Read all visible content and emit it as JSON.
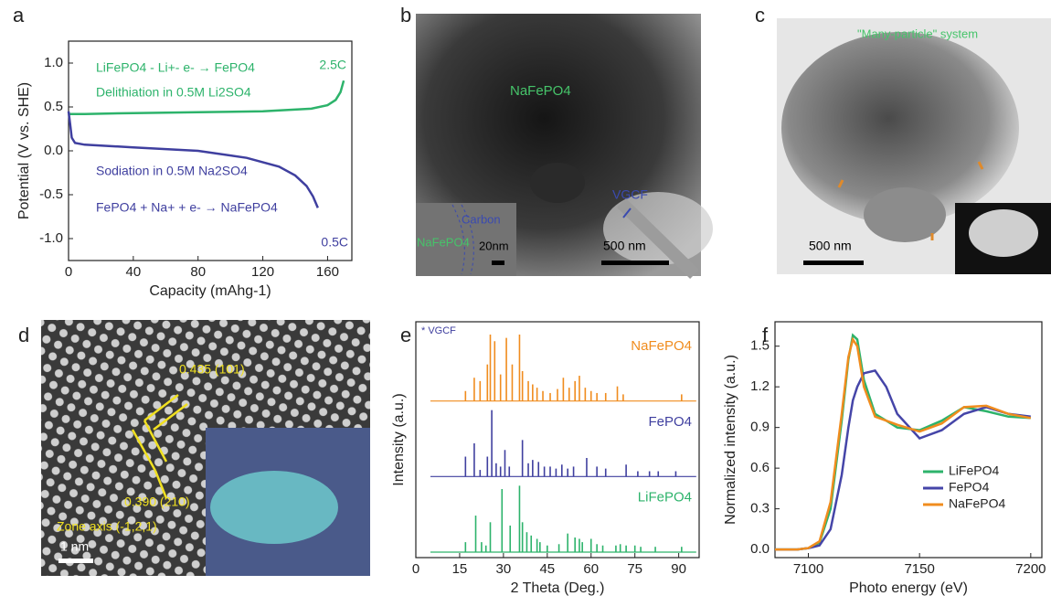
{
  "chart_data": [
    {
      "type": "line",
      "label": "a",
      "xlabel": "Capacity (mAhg-1)",
      "ylabel": "Potential (V vs. SHE)",
      "xlim": [
        0,
        175
      ],
      "xticks": [
        0,
        40,
        80,
        120,
        160
      ],
      "ylim": [
        -1.25,
        1.25
      ],
      "yticks": [
        {
          "value": -1.0,
          "label": "-1.0"
        },
        {
          "value": -0.5,
          "label": "-0.5"
        },
        {
          "value": 0.0,
          "label": "0.0"
        },
        {
          "value": 0.5,
          "label": "0.5"
        },
        {
          "value": 1.0,
          "label": "1.0"
        }
      ],
      "series": [
        {
          "color": "#2db36b",
          "x": [
            0,
            10,
            40,
            80,
            120,
            150,
            160,
            165,
            168,
            170
          ],
          "values": [
            0.42,
            0.42,
            0.43,
            0.44,
            0.45,
            0.48,
            0.52,
            0.58,
            0.67,
            0.8
          ]
        },
        {
          "color": "#3f3f9f",
          "x": [
            0,
            1,
            2,
            4,
            10,
            40,
            80,
            110,
            130,
            140,
            147,
            151,
            154
          ],
          "values": [
            0.45,
            0.3,
            0.15,
            0.09,
            0.07,
            0.04,
            0.0,
            -0.08,
            -0.18,
            -0.28,
            -0.4,
            -0.52,
            -0.65
          ]
        }
      ],
      "annotations": [
        {
          "text": "LiFePO4 - Li+- e- → FePO4",
          "color": "#2db36b"
        },
        {
          "text": "Delithiation in 0.5M Li2SO4",
          "color": "#2db36b"
        },
        {
          "text": "2.5C",
          "color": "#2db36b"
        },
        {
          "text": "Sodiation in 0.5M Na2SO4",
          "color": "#3f3f9f"
        },
        {
          "text": "FePO4 + Na+ + e- → NaFePO4",
          "color": "#3f3f9f"
        },
        {
          "text": "0.5C",
          "color": "#3f3f9f"
        }
      ]
    },
    {
      "type": "spectrum",
      "label": "e",
      "xlabel": "2 Theta (Deg.)",
      "ylabel": "Intensity (a.u.)",
      "xlim": [
        0,
        97
      ],
      "xticks": [
        0,
        15,
        30,
        45,
        60,
        75,
        90
      ],
      "marker_note": "* VGCF",
      "series": [
        {
          "name": "NaFePO4",
          "color": "#f08c1e",
          "x": [
            17,
            20,
            22,
            24.5,
            25.5,
            27,
            29,
            31,
            33,
            35.5,
            36.5,
            38.5,
            40,
            41.5,
            43.5,
            46,
            48.5,
            50.5,
            52.5,
            54.5,
            56,
            58,
            60,
            62,
            65,
            69,
            71,
            91
          ],
          "values": [
            15,
            35,
            30,
            55,
            100,
            90,
            40,
            95,
            55,
            100,
            45,
            30,
            25,
            20,
            15,
            12,
            18,
            35,
            20,
            30,
            38,
            20,
            15,
            12,
            12,
            22,
            10,
            10
          ]
        },
        {
          "name": "FePO4",
          "color": "#3f3f9f",
          "x": [
            17,
            20,
            22,
            24.5,
            26,
            27.5,
            29,
            30.5,
            32,
            36.5,
            38.5,
            40,
            42,
            44,
            46,
            48,
            50,
            52,
            54,
            58.5,
            62,
            65,
            72,
            76,
            80,
            83,
            89
          ],
          "values": [
            30,
            50,
            10,
            30,
            100,
            20,
            15,
            40,
            15,
            55,
            20,
            25,
            22,
            15,
            15,
            12,
            18,
            12,
            15,
            28,
            15,
            12,
            18,
            8,
            8,
            8,
            8
          ]
        },
        {
          "name": "LiFePO4",
          "color": "#2db36b",
          "x": [
            17,
            20.5,
            22.5,
            24,
            25.5,
            29.5,
            32.3,
            35.5,
            36.5,
            38,
            39.5,
            41.5,
            42.5,
            45,
            49,
            52,
            54.5,
            56,
            57,
            60,
            62,
            64,
            68.5,
            70,
            72,
            75,
            77,
            82,
            91
          ],
          "values": [
            15,
            55,
            15,
            10,
            45,
            95,
            40,
            100,
            45,
            30,
            25,
            20,
            15,
            10,
            12,
            28,
            22,
            20,
            15,
            20,
            12,
            10,
            10,
            12,
            10,
            10,
            8,
            8,
            8
          ]
        }
      ]
    },
    {
      "type": "line",
      "label": "f",
      "xlabel": "Photo energy (eV)",
      "ylabel": "Normalized intensity (a.u.)",
      "xlim": [
        7085,
        7205
      ],
      "xticks": [
        7100,
        7150,
        7200
      ],
      "ylim": [
        -0.06,
        1.68
      ],
      "yticks": [
        {
          "value": 0.0,
          "label": "0.0"
        },
        {
          "value": 0.3,
          "label": "0.3"
        },
        {
          "value": 0.6,
          "label": "0.6"
        },
        {
          "value": 0.9,
          "label": "0.9"
        },
        {
          "value": 1.2,
          "label": "1.2"
        },
        {
          "value": 1.5,
          "label": "1.5"
        }
      ],
      "x": [
        7085,
        7095,
        7100,
        7105,
        7110,
        7115,
        7118,
        7120,
        7122,
        7125,
        7130,
        7135,
        7140,
        7150,
        7160,
        7170,
        7180,
        7190,
        7200
      ],
      "legend": "lower right",
      "series": [
        {
          "name": "LiFePO4",
          "color": "#2db36b",
          "values": [
            0,
            0,
            0.01,
            0.05,
            0.3,
            0.95,
            1.4,
            1.58,
            1.55,
            1.25,
            1.0,
            0.95,
            0.9,
            0.88,
            0.95,
            1.05,
            1.02,
            0.98,
            0.97
          ]
        },
        {
          "name": "FePO4",
          "color": "#4545a8",
          "values": [
            0,
            0,
            0.01,
            0.03,
            0.15,
            0.55,
            0.9,
            1.1,
            1.2,
            1.3,
            1.32,
            1.2,
            1.0,
            0.82,
            0.88,
            1.0,
            1.05,
            1.0,
            0.98
          ]
        },
        {
          "name": "NaFePO4",
          "color": "#f08c1e",
          "values": [
            0,
            0,
            0.01,
            0.06,
            0.35,
            1.0,
            1.42,
            1.55,
            1.5,
            1.2,
            0.98,
            0.95,
            0.92,
            0.87,
            0.93,
            1.05,
            1.06,
            1.0,
            0.97
          ]
        }
      ]
    }
  ],
  "images": [
    {
      "label": "b",
      "texts": [
        "NaFePO4",
        "Carbon",
        "NaFePO4",
        "20nm",
        "500 nm",
        "VGCF"
      ]
    },
    {
      "label": "c",
      "texts": [
        "\"Many-particle\" system",
        "500 nm"
      ]
    },
    {
      "label": "d",
      "texts": [
        "0.435 (101)",
        "0.390 (210)",
        "Zone axis (-1,2,1)",
        "1 nm"
      ]
    }
  ]
}
